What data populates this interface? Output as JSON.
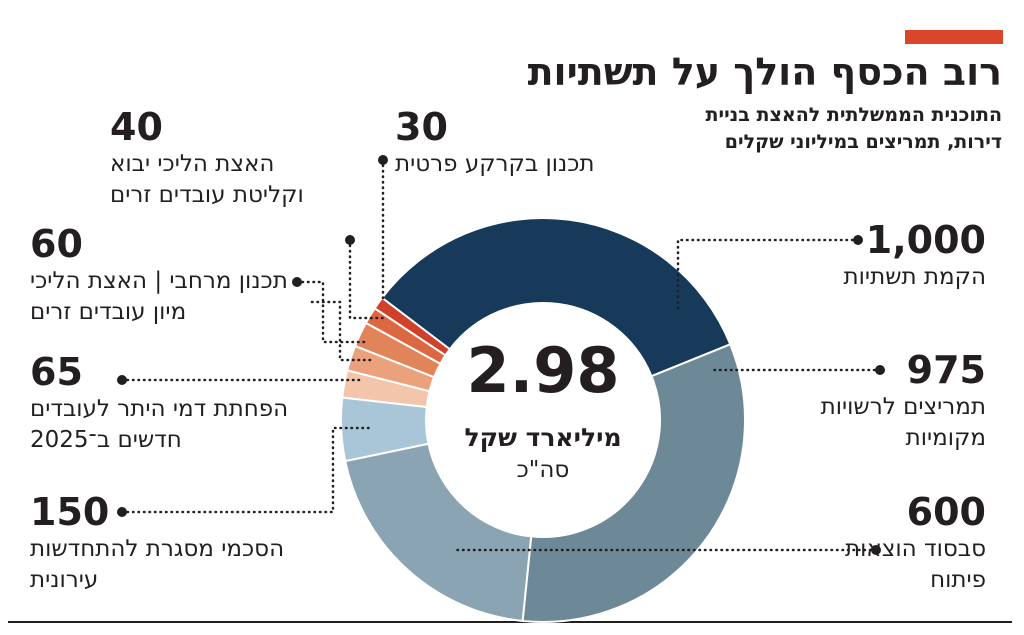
{
  "chart_data": {
    "type": "donut",
    "title": "רוב הכסף הולך על תשתיות",
    "subtitle": "התוכנית הממשלתית להאצת בניית דירות, תמריצים במיליוני שקלים",
    "total": 2.98,
    "total_unit": "מיליארד שקל",
    "total_label": "סה\"כ",
    "categories": [
      "הקמת תשתיות",
      "תמריצים לרשויות מקומיות",
      "סבסוד הוצאות פיתוח",
      "הסכמי מסגרת להתחדשות עירונית",
      "הפחתת דמי היתר לעובדים חדשים ב־2025",
      "תכנון מרחבי",
      "האצת הליכי מיון עובדים זרים",
      "האצת הליכי יבוא וקליטת עובדים זרים",
      "תכנון בקרקע פרטית"
    ],
    "values": [
      1000,
      975,
      600,
      150,
      65,
      60,
      60,
      40,
      30
    ],
    "value_labels": [
      "1,000",
      "975",
      "600",
      "150",
      "65",
      "60",
      null,
      "40",
      "30"
    ],
    "colors": [
      "#173a5a",
      "#6d8897",
      "#8ba4b4",
      "#a8c6d8",
      "#f3c5aa",
      "#eba27c",
      "#e2845a",
      "#db6841",
      "#cf412b"
    ]
  }
}
